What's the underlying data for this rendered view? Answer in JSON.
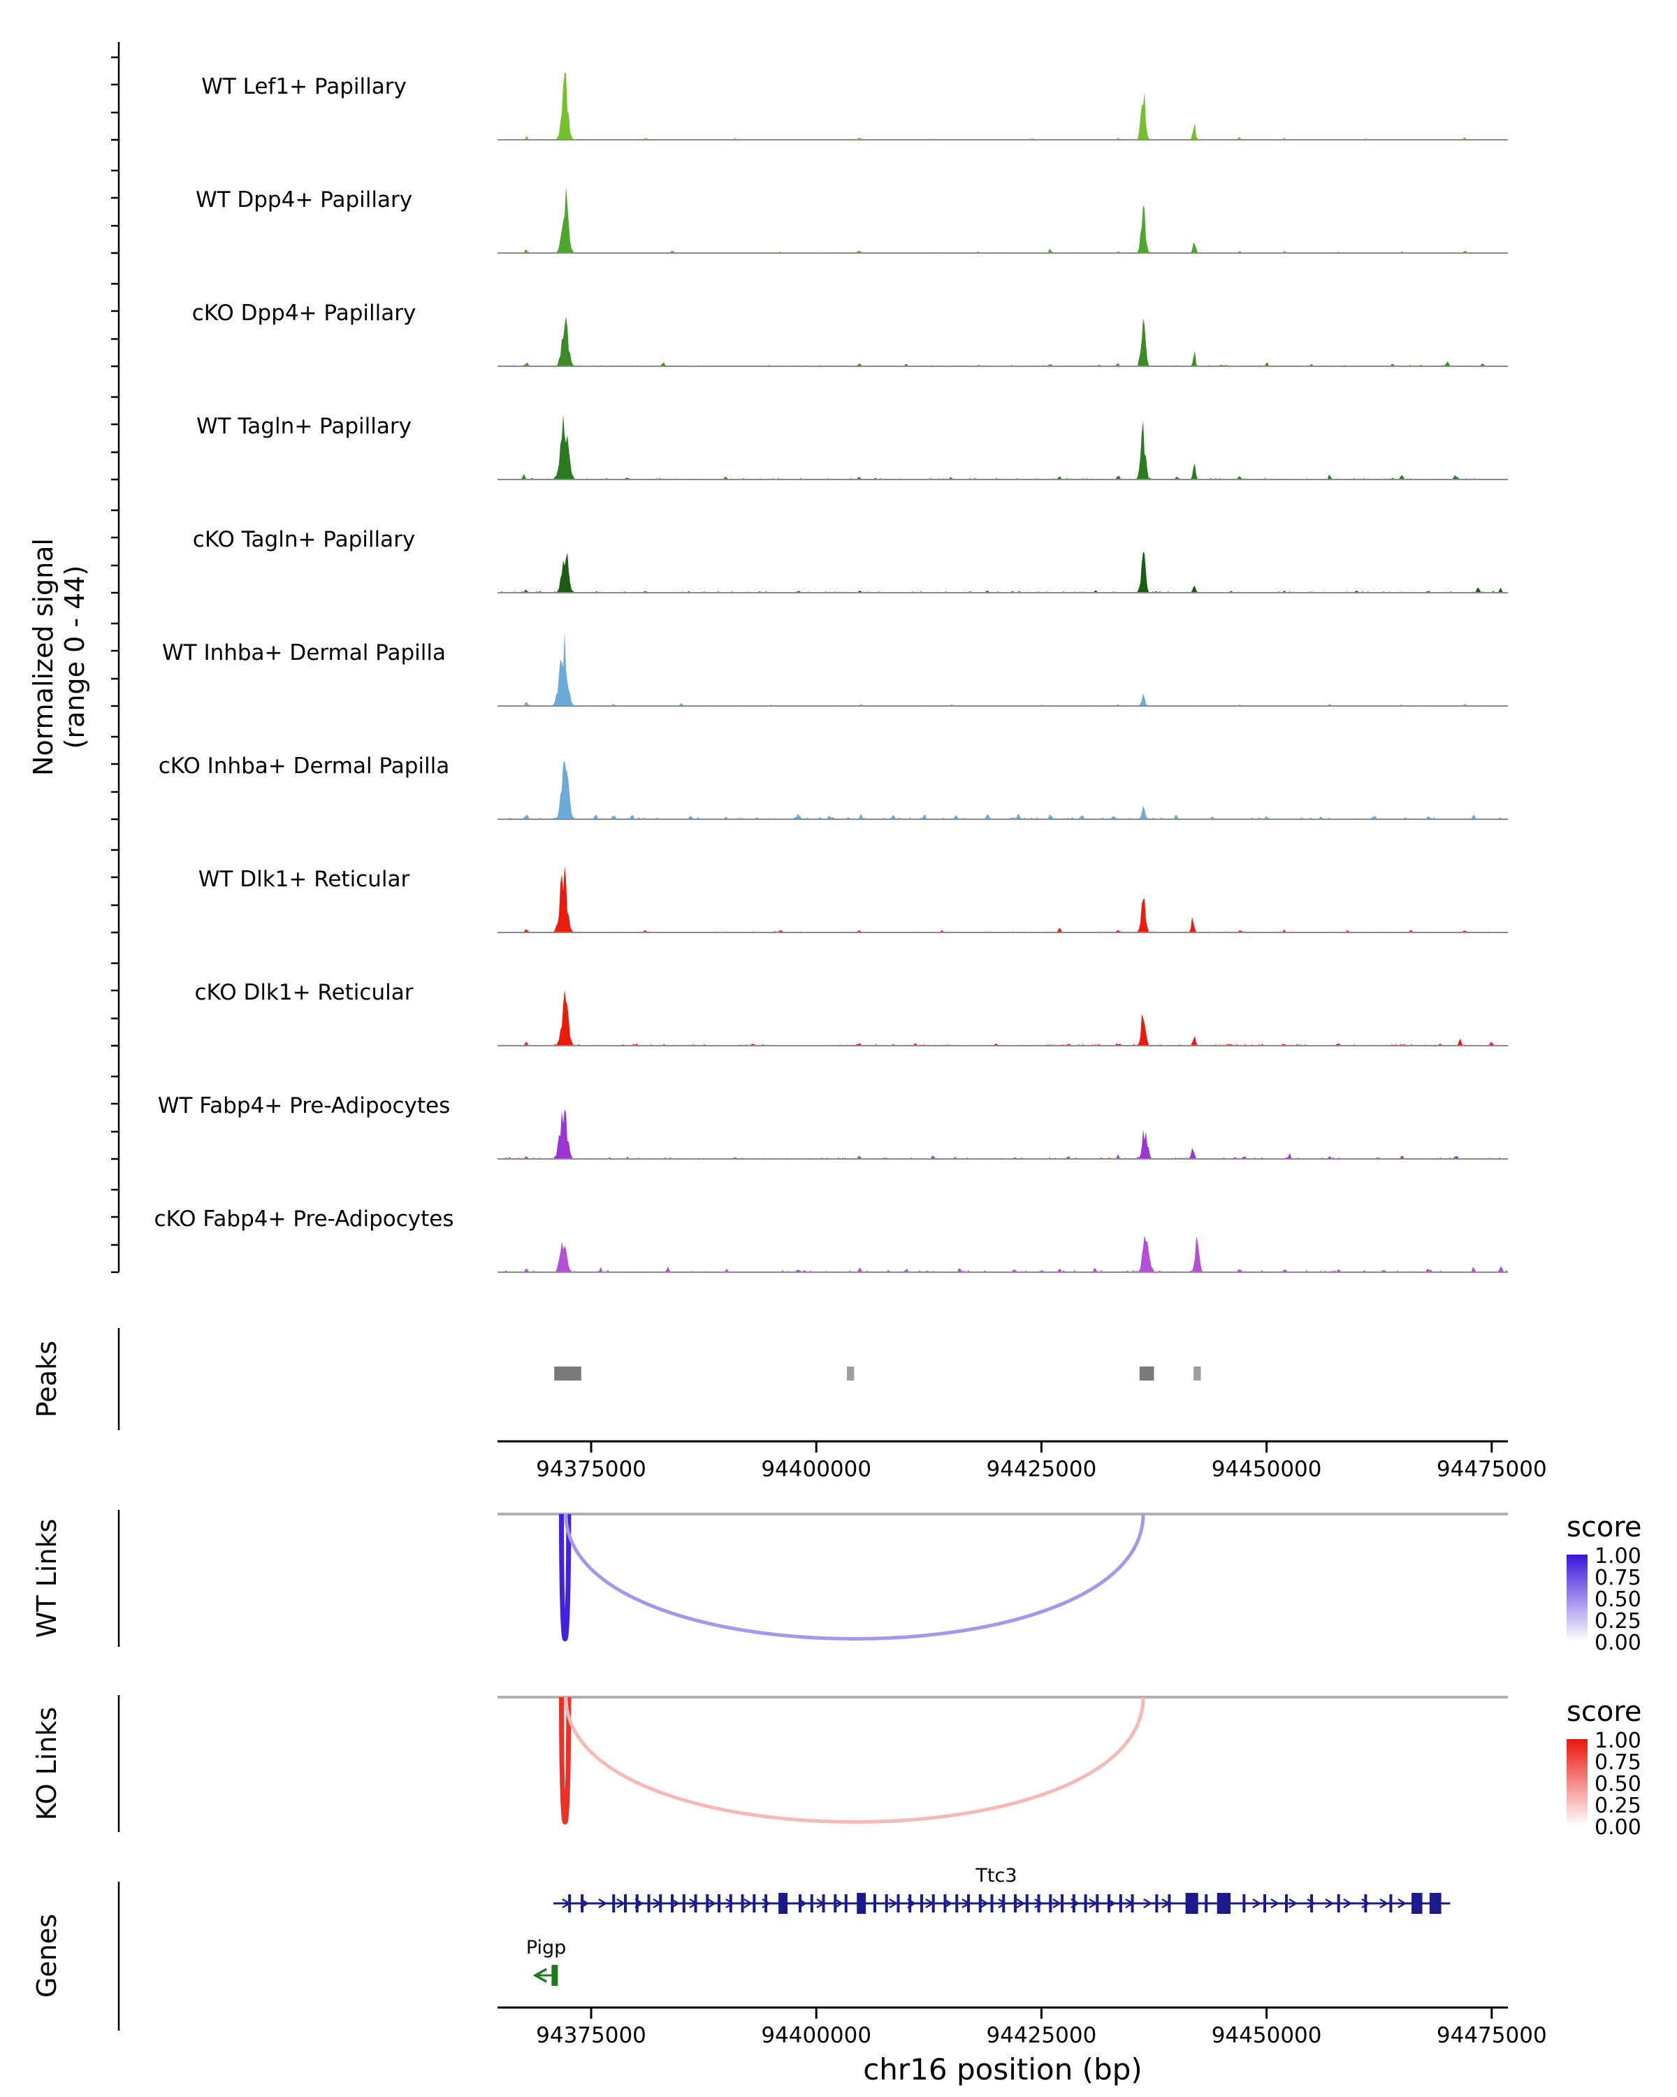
{
  "figure": {
    "y_axis_label_line1": "Normalized signal",
    "y_axis_label_line2": "(range 0 - 44)",
    "section_labels": {
      "peaks": "Peaks",
      "wt_links": "WT Links",
      "ko_links": "KO Links",
      "genes": "Genes"
    },
    "x_axis": {
      "title": "chr16 position (bp)",
      "tick_labels": [
        "94375000",
        "94400000",
        "94425000",
        "94450000",
        "94475000"
      ],
      "tick_positions": [
        94375000,
        94400000,
        94425000,
        94450000,
        94475000
      ]
    }
  },
  "chart_data": {
    "type": "area",
    "description": "Genome browser coverage plot of normalized ATAC signal (range 0-44) across chr16:94364600-94476800 with peaks, co-accessibility links and gene models",
    "genome": {
      "chrom": "chr16",
      "start": 94364600,
      "end": 94476800
    },
    "signal_range": [
      0,
      44
    ],
    "tracks": [
      {
        "label": "WT Lef1+ Papillary",
        "color": "#74C12E",
        "noise": 0.4,
        "peaks": [
          [
            94372100,
            44,
            450
          ],
          [
            94436300,
            33,
            320
          ],
          [
            94441966,
            12,
            200
          ]
        ],
        "bumps": [
          [
            94367800,
            2.5
          ],
          [
            94381000,
            1.5
          ],
          [
            94391000,
            1
          ],
          [
            94404800,
            1.5
          ],
          [
            94413000,
            1
          ],
          [
            94424000,
            1
          ],
          [
            94433500,
            1.5
          ],
          [
            94447000,
            1.5
          ],
          [
            94452000,
            1
          ],
          [
            94461000,
            1
          ],
          [
            94472000,
            1.5
          ]
        ]
      },
      {
        "label": "WT Dpp4+ Papillary",
        "color": "#4EA62C",
        "noise": 0.5,
        "peaks": [
          [
            94372100,
            38,
            480
          ],
          [
            94436300,
            33,
            320
          ],
          [
            94441966,
            11,
            200
          ]
        ],
        "bumps": [
          [
            94367800,
            2.5
          ],
          [
            94384000,
            1.5
          ],
          [
            94396000,
            1
          ],
          [
            94404800,
            2
          ],
          [
            94418000,
            1
          ],
          [
            94426000,
            3
          ],
          [
            94433500,
            1.5
          ],
          [
            94447000,
            2
          ],
          [
            94452000,
            1.5
          ],
          [
            94458000,
            1
          ],
          [
            94465000,
            1.5
          ],
          [
            94472000,
            2
          ]
        ]
      },
      {
        "label": "cKO Dpp4+ Papillary",
        "color": "#3D8B26",
        "noise": 0.8,
        "peaks": [
          [
            94372100,
            33,
            480
          ],
          [
            94436300,
            31,
            320
          ],
          [
            94441966,
            9,
            200
          ]
        ],
        "bumps": [
          [
            94367800,
            2.5
          ],
          [
            94383000,
            3
          ],
          [
            94404800,
            2
          ],
          [
            94410000,
            1.5
          ],
          [
            94418000,
            1.5
          ],
          [
            94426000,
            2
          ],
          [
            94433500,
            2
          ],
          [
            94445000,
            1.5
          ],
          [
            94450000,
            2
          ],
          [
            94455000,
            1.5
          ],
          [
            94464000,
            1.5
          ],
          [
            94470000,
            3.5
          ],
          [
            94474000,
            2.5
          ]
        ]
      },
      {
        "label": "WT Tagln+ Papillary",
        "color": "#2A7A1F",
        "noise": 0.9,
        "peaks": [
          [
            94372000,
            44,
            560
          ],
          [
            94436300,
            35,
            350
          ],
          [
            94441966,
            10,
            200
          ]
        ],
        "bumps": [
          [
            94367500,
            3
          ],
          [
            94379000,
            2
          ],
          [
            94390000,
            1.5
          ],
          [
            94404800,
            2
          ],
          [
            94415000,
            1.5
          ],
          [
            94427000,
            2
          ],
          [
            94433500,
            3
          ],
          [
            94440000,
            2
          ],
          [
            94447000,
            2
          ],
          [
            94457000,
            2
          ],
          [
            94465000,
            3.5
          ],
          [
            94471000,
            3
          ]
        ]
      },
      {
        "label": "cKO Tagln+ Papillary",
        "color": "#1C5C14",
        "noise": 0.9,
        "peaks": [
          [
            94372100,
            31,
            480
          ],
          [
            94436300,
            28,
            320
          ],
          [
            94441966,
            6,
            200
          ]
        ],
        "bumps": [
          [
            94367800,
            2.5
          ],
          [
            94381000,
            1.5
          ],
          [
            94398000,
            1.5
          ],
          [
            94404800,
            1.5
          ],
          [
            94419000,
            1.5
          ],
          [
            94431000,
            1.5
          ],
          [
            94446000,
            1.5
          ],
          [
            94452000,
            1.5
          ],
          [
            94460000,
            1.5
          ],
          [
            94468000,
            2
          ],
          [
            94473500,
            5
          ],
          [
            94476000,
            3
          ]
        ]
      },
      {
        "label": "WT Inhba+ Dermal Papilla",
        "color": "#6CAADB",
        "noise": 0.5,
        "peaks": [
          [
            94371900,
            44,
            560
          ],
          [
            94436300,
            8,
            260
          ]
        ],
        "bumps": [
          [
            94367800,
            2.5
          ],
          [
            94377500,
            1.5
          ],
          [
            94385000,
            1.5
          ],
          [
            94395000,
            1
          ],
          [
            94405000,
            1
          ],
          [
            94415000,
            1
          ],
          [
            94425000,
            1
          ],
          [
            94433500,
            1
          ],
          [
            94447000,
            1
          ],
          [
            94457000,
            1.5
          ],
          [
            94465000,
            1
          ],
          [
            94472000,
            1.5
          ]
        ]
      },
      {
        "label": "cKO Inhba+ Dermal Papilla",
        "color": "#6CAADB",
        "noise": 1.2,
        "peaks": [
          [
            94372100,
            36,
            520
          ],
          [
            94436300,
            8,
            260
          ]
        ],
        "bumps": [
          [
            94367800,
            3
          ],
          [
            94375500,
            4
          ],
          [
            94377500,
            3.5
          ],
          [
            94379500,
            3
          ],
          [
            94386000,
            2.5
          ],
          [
            94398000,
            3.5
          ],
          [
            94401500,
            3
          ],
          [
            94405000,
            3.5
          ],
          [
            94408500,
            3
          ],
          [
            94412000,
            3.5
          ],
          [
            94415500,
            3
          ],
          [
            94419000,
            3.5
          ],
          [
            94422500,
            3
          ],
          [
            94426000,
            4
          ],
          [
            94429500,
            3
          ],
          [
            94433000,
            3.5
          ],
          [
            94440000,
            2.5
          ],
          [
            94444000,
            2.5
          ],
          [
            94450000,
            2.5
          ],
          [
            94456000,
            2.5
          ],
          [
            94462000,
            2.5
          ],
          [
            94468000,
            3
          ],
          [
            94473000,
            3
          ]
        ]
      },
      {
        "label": "WT Dlk1+ Reticular",
        "color": "#EB1C0C",
        "noise": 0.7,
        "peaks": [
          [
            94371900,
            41,
            520
          ],
          [
            94436300,
            27,
            320
          ],
          [
            94441800,
            10,
            220
          ]
        ],
        "bumps": [
          [
            94367800,
            2.5
          ],
          [
            94381000,
            1.5
          ],
          [
            94396000,
            1.5
          ],
          [
            94404800,
            1.5
          ],
          [
            94414000,
            1.5
          ],
          [
            94427000,
            3.5
          ],
          [
            94433500,
            1.5
          ],
          [
            94447000,
            1.5
          ],
          [
            94452000,
            1.5
          ],
          [
            94459000,
            1.5
          ],
          [
            94466000,
            1.5
          ],
          [
            94472000,
            1.5
          ]
        ]
      },
      {
        "label": "cKO Dlk1+ Reticular",
        "color": "#EB1C0C",
        "noise": 1.0,
        "peaks": [
          [
            94372100,
            31,
            480
          ],
          [
            94436300,
            27,
            320
          ],
          [
            94441966,
            7,
            200
          ]
        ],
        "bumps": [
          [
            94367800,
            2.5
          ],
          [
            94380000,
            1.5
          ],
          [
            94393000,
            1.5
          ],
          [
            94404800,
            1.5
          ],
          [
            94411000,
            1.5
          ],
          [
            94420000,
            1.5
          ],
          [
            94428000,
            2
          ],
          [
            94433500,
            1.5
          ],
          [
            94446000,
            1.5
          ],
          [
            94452000,
            1.5
          ],
          [
            94458000,
            1.5
          ],
          [
            94465000,
            1.5
          ],
          [
            94471500,
            5
          ],
          [
            94475000,
            3
          ]
        ]
      },
      {
        "label": "WT Fabp4+ Pre-Adipocytes",
        "color": "#9A35D1",
        "noise": 1.0,
        "peaks": [
          [
            94371900,
            37,
            520
          ],
          [
            94436500,
            21,
            380
          ],
          [
            94441800,
            9,
            220
          ]
        ],
        "bumps": [
          [
            94367800,
            2.5
          ],
          [
            94379000,
            1.5
          ],
          [
            94391000,
            1.5
          ],
          [
            94404800,
            2
          ],
          [
            94413000,
            1.5
          ],
          [
            94422000,
            1.5
          ],
          [
            94428000,
            2
          ],
          [
            94433500,
            2
          ],
          [
            94447500,
            2.5
          ],
          [
            94452500,
            3.5
          ],
          [
            94457000,
            2
          ],
          [
            94465000,
            2
          ],
          [
            94471000,
            2.5
          ]
        ]
      },
      {
        "label": "cKO Fabp4+ Pre-Adipocytes",
        "color": "#B44FD6",
        "noise": 1.3,
        "peaks": [
          [
            94371900,
            19,
            480
          ],
          [
            94436600,
            32,
            420
          ],
          [
            94442300,
            23,
            300
          ]
        ],
        "bumps": [
          [
            94367800,
            2.5
          ],
          [
            94376000,
            2.5
          ],
          [
            94383500,
            3.5
          ],
          [
            94390000,
            2
          ],
          [
            94398000,
            2.5
          ],
          [
            94404800,
            2.5
          ],
          [
            94410000,
            2
          ],
          [
            94416000,
            2.5
          ],
          [
            94422000,
            2.5
          ],
          [
            94427000,
            2.5
          ],
          [
            94431000,
            2.5
          ],
          [
            94447000,
            2.5
          ],
          [
            94452000,
            2.5
          ],
          [
            94458000,
            2.5
          ],
          [
            94463000,
            2.5
          ],
          [
            94468000,
            2.5
          ],
          [
            94473000,
            3.5
          ],
          [
            94476000,
            3
          ]
        ]
      }
    ],
    "peaks": [
      {
        "start": 94370900,
        "end": 94373900,
        "color": "#7a7a7a"
      },
      {
        "start": 94403400,
        "end": 94404200,
        "color": "#9e9e9e"
      },
      {
        "start": 94435900,
        "end": 94437500,
        "color": "#7a7a7a"
      },
      {
        "start": 94441900,
        "end": 94442700,
        "color": "#9e9e9e"
      }
    ],
    "links": {
      "wt": {
        "high_color": "#3A16D9",
        "links": [
          {
            "start": 94371700,
            "end": 94372500,
            "score": 0.95
          },
          {
            "start": 94372200,
            "end": 94436300,
            "score": 0.45
          }
        ]
      },
      "ko": {
        "high_color": "#E8160C",
        "links": [
          {
            "start": 94371700,
            "end": 94372500,
            "score": 0.88
          },
          {
            "start": 94372200,
            "end": 94436300,
            "score": 0.3
          }
        ]
      },
      "legend": {
        "title": "score",
        "labels": [
          "1.00",
          "0.75",
          "0.50",
          "0.25",
          "0.00"
        ]
      }
    },
    "genes": [
      {
        "name": "Ttc3",
        "color": "#1A1A8C",
        "strand": "+",
        "start": 94370800,
        "end": 94470400,
        "label_bp": 94420000,
        "exons": [
          94372600,
          94374000,
          94377500,
          94378800,
          94380100,
          94381400,
          94382700,
          94384000,
          94385300,
          94386600,
          94387900,
          94389200,
          94390500,
          94391800,
          94393100,
          94394400,
          94398200,
          94399500,
          94400800,
          94402100,
          94403300,
          94406500,
          94407800,
          94409100,
          94410400,
          94411700,
          94413000,
          94414300,
          94415600,
          94416900,
          94418200,
          94419500,
          94420800,
          94422100,
          94423400,
          94424700,
          94426000,
          94427300,
          94428600,
          94429900,
          94431200,
          94432500,
          94433800,
          94435100,
          94437800,
          94439200,
          94443300,
          94447500,
          94449800,
          94452200,
          94455000,
          94458000,
          94461000,
          94463800
        ],
        "cds": [
          [
            94395800,
            94396800
          ],
          [
            94404500,
            94405500
          ],
          [
            94441000,
            94442400
          ],
          [
            94444500,
            94446000
          ],
          [
            94466100,
            94467300
          ],
          [
            94468100,
            94469400
          ]
        ]
      },
      {
        "name": "Pigp",
        "color": "#1F7A1F",
        "strand": "-",
        "start": 94368800,
        "end": 94371300,
        "label_bp": 94370000,
        "exons": [],
        "cds": [
          [
            94370600,
            94371300
          ]
        ]
      }
    ]
  }
}
